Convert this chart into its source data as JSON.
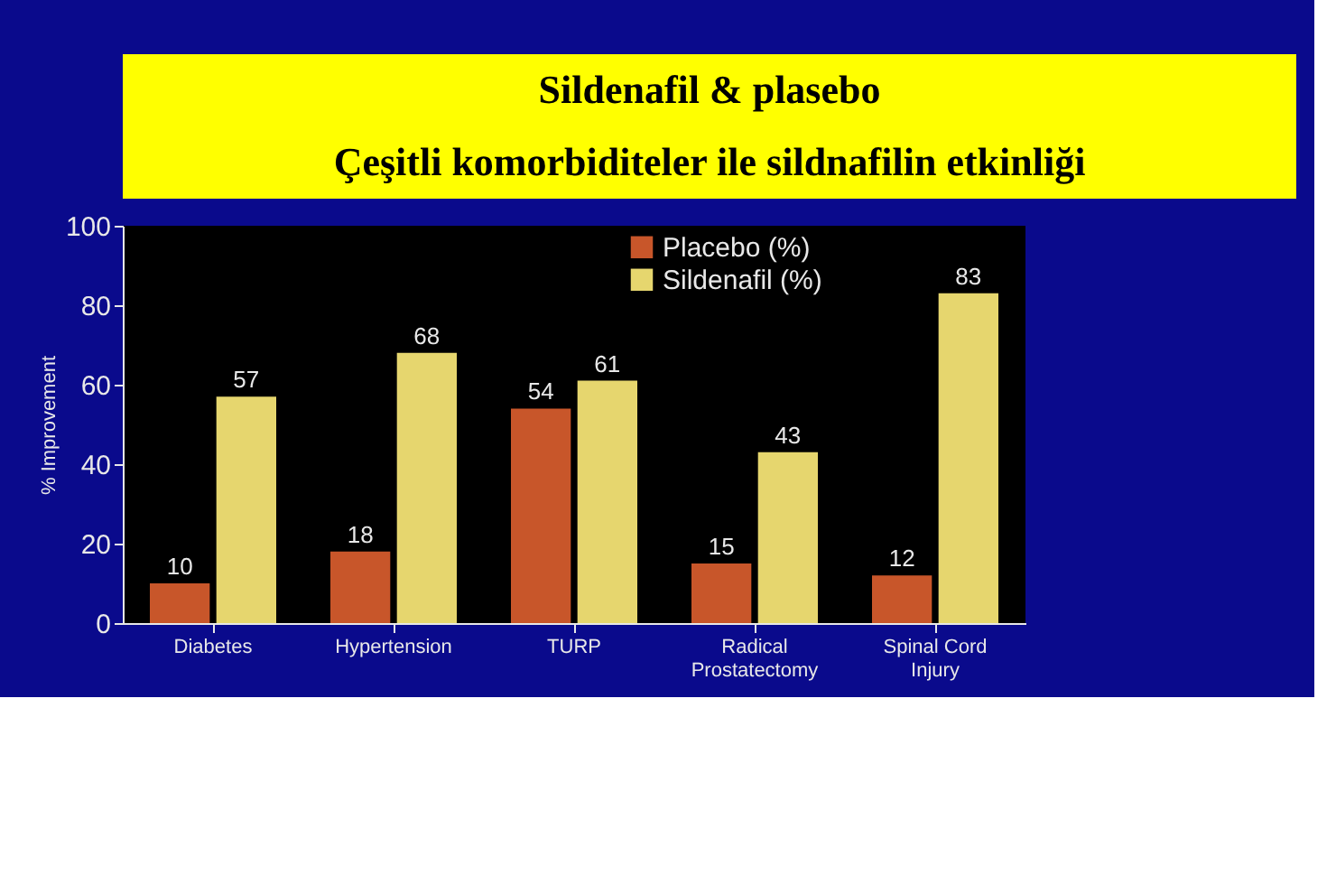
{
  "chart_data": {
    "type": "bar",
    "title": "Sildenafil & plasebo",
    "subtitle": "Çeşitli komorbiditeler ile sildnafilin etkinliği",
    "ylabel": "% Improvement",
    "categories": [
      "Diabetes",
      "Hypertension",
      "TURP",
      "Radical Prostatectomy",
      "Spinal Cord Injury"
    ],
    "series": [
      {
        "name": "Placebo (%)",
        "color": "#c8562a",
        "values": [
          10,
          18,
          54,
          15,
          12
        ]
      },
      {
        "name": "Sildenafil (%)",
        "color": "#e6d66e",
        "values": [
          57,
          68,
          61,
          43,
          83
        ]
      }
    ],
    "ylim": [
      0,
      100
    ],
    "yticks": [
      0,
      20,
      40,
      60,
      80,
      100
    ],
    "grid": false,
    "legend": "top right",
    "data_labels": true
  }
}
